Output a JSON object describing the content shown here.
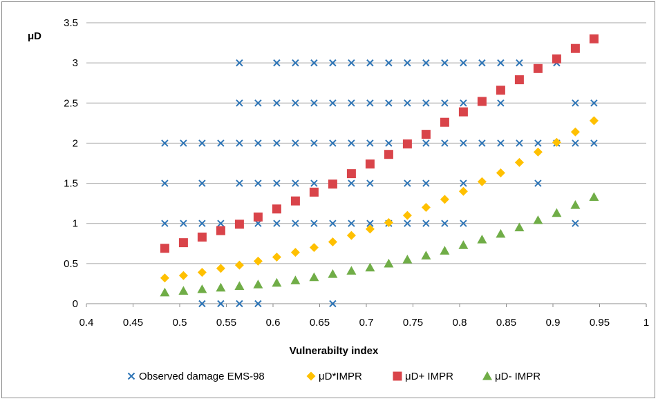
{
  "chart_data": {
    "type": "scatter",
    "xlabel": "Vulnerabilty index",
    "ylabel": "μD",
    "xlim": [
      0.4,
      1
    ],
    "ylim": [
      0,
      3.5
    ],
    "x_ticks": [
      "0.4",
      "0.45",
      "0.5",
      "0.55",
      "0.6",
      "0.65",
      "0.7",
      "0.75",
      "0.8",
      "0.85",
      "0.9",
      "0.95",
      "1"
    ],
    "y_ticks": [
      "0",
      "0.5",
      "1",
      "1.5",
      "2",
      "2.5",
      "3",
      "3.5"
    ],
    "grid": "horizontal",
    "legend_position": "bottom",
    "series": [
      {
        "name": "Observed damage EMS-98",
        "marker": "x",
        "color": "#2e75b6",
        "points": [
          [
            0.484,
            2
          ],
          [
            0.484,
            1.5
          ],
          [
            0.484,
            1
          ],
          [
            0.504,
            2
          ],
          [
            0.504,
            1
          ],
          [
            0.524,
            2
          ],
          [
            0.524,
            1.5
          ],
          [
            0.524,
            1
          ],
          [
            0.524,
            0
          ],
          [
            0.544,
            2
          ],
          [
            0.544,
            1
          ],
          [
            0.544,
            0
          ],
          [
            0.564,
            3
          ],
          [
            0.564,
            2.5
          ],
          [
            0.564,
            2
          ],
          [
            0.564,
            1.5
          ],
          [
            0.564,
            1
          ],
          [
            0.564,
            0
          ],
          [
            0.584,
            2.5
          ],
          [
            0.584,
            2
          ],
          [
            0.584,
            1.5
          ],
          [
            0.584,
            1
          ],
          [
            0.584,
            0
          ],
          [
            0.604,
            3
          ],
          [
            0.604,
            2.5
          ],
          [
            0.604,
            2
          ],
          [
            0.604,
            1.5
          ],
          [
            0.604,
            1
          ],
          [
            0.624,
            3
          ],
          [
            0.624,
            2.5
          ],
          [
            0.624,
            2
          ],
          [
            0.624,
            1.5
          ],
          [
            0.624,
            1
          ],
          [
            0.644,
            3
          ],
          [
            0.644,
            2.5
          ],
          [
            0.644,
            2
          ],
          [
            0.644,
            1.5
          ],
          [
            0.644,
            1
          ],
          [
            0.664,
            3
          ],
          [
            0.664,
            2.5
          ],
          [
            0.664,
            2
          ],
          [
            0.664,
            1.5
          ],
          [
            0.664,
            1
          ],
          [
            0.664,
            0
          ],
          [
            0.684,
            3
          ],
          [
            0.684,
            2.5
          ],
          [
            0.684,
            2
          ],
          [
            0.684,
            1.5
          ],
          [
            0.684,
            1
          ],
          [
            0.704,
            3
          ],
          [
            0.704,
            2.5
          ],
          [
            0.704,
            2
          ],
          [
            0.704,
            1.5
          ],
          [
            0.704,
            1
          ],
          [
            0.724,
            3
          ],
          [
            0.724,
            2.5
          ],
          [
            0.724,
            2
          ],
          [
            0.724,
            1
          ],
          [
            0.744,
            3
          ],
          [
            0.744,
            2.5
          ],
          [
            0.744,
            2
          ],
          [
            0.744,
            1.5
          ],
          [
            0.744,
            1
          ],
          [
            0.764,
            3
          ],
          [
            0.764,
            2.5
          ],
          [
            0.764,
            2
          ],
          [
            0.764,
            1.5
          ],
          [
            0.764,
            1
          ],
          [
            0.784,
            3
          ],
          [
            0.784,
            2.5
          ],
          [
            0.784,
            2
          ],
          [
            0.784,
            1
          ],
          [
            0.804,
            3
          ],
          [
            0.804,
            2.5
          ],
          [
            0.804,
            2
          ],
          [
            0.804,
            1.5
          ],
          [
            0.804,
            1
          ],
          [
            0.824,
            3
          ],
          [
            0.824,
            2
          ],
          [
            0.844,
            3
          ],
          [
            0.844,
            2.5
          ],
          [
            0.844,
            2
          ],
          [
            0.864,
            3
          ],
          [
            0.864,
            2
          ],
          [
            0.884,
            2
          ],
          [
            0.884,
            1.5
          ],
          [
            0.904,
            3
          ],
          [
            0.904,
            2
          ],
          [
            0.924,
            2.5
          ],
          [
            0.924,
            2
          ],
          [
            0.924,
            1
          ],
          [
            0.944,
            2.5
          ],
          [
            0.944,
            2
          ]
        ]
      },
      {
        "name": "μD*IMPR",
        "marker": "diamond",
        "color": "#ffc000",
        "points": [
          [
            0.484,
            0.32
          ],
          [
            0.504,
            0.35
          ],
          [
            0.524,
            0.39
          ],
          [
            0.544,
            0.44
          ],
          [
            0.564,
            0.48
          ],
          [
            0.584,
            0.53
          ],
          [
            0.604,
            0.58
          ],
          [
            0.624,
            0.64
          ],
          [
            0.644,
            0.7
          ],
          [
            0.664,
            0.77
          ],
          [
            0.684,
            0.85
          ],
          [
            0.704,
            0.93
          ],
          [
            0.724,
            1.01
          ],
          [
            0.744,
            1.1
          ],
          [
            0.764,
            1.2
          ],
          [
            0.784,
            1.3
          ],
          [
            0.804,
            1.4
          ],
          [
            0.824,
            1.52
          ],
          [
            0.844,
            1.63
          ],
          [
            0.864,
            1.76
          ],
          [
            0.884,
            1.89
          ],
          [
            0.904,
            2.01
          ],
          [
            0.924,
            2.14
          ],
          [
            0.944,
            2.28
          ]
        ]
      },
      {
        "name": "μD+ IMPR",
        "marker": "square",
        "color": "#d9444a",
        "points": [
          [
            0.484,
            0.69
          ],
          [
            0.504,
            0.76
          ],
          [
            0.524,
            0.83
          ],
          [
            0.544,
            0.91
          ],
          [
            0.564,
            0.99
          ],
          [
            0.584,
            1.08
          ],
          [
            0.604,
            1.18
          ],
          [
            0.624,
            1.28
          ],
          [
            0.644,
            1.39
          ],
          [
            0.664,
            1.49
          ],
          [
            0.684,
            1.62
          ],
          [
            0.704,
            1.74
          ],
          [
            0.724,
            1.86
          ],
          [
            0.744,
            1.99
          ],
          [
            0.764,
            2.11
          ],
          [
            0.784,
            2.26
          ],
          [
            0.804,
            2.39
          ],
          [
            0.824,
            2.52
          ],
          [
            0.844,
            2.66
          ],
          [
            0.864,
            2.79
          ],
          [
            0.884,
            2.93
          ],
          [
            0.904,
            3.05
          ],
          [
            0.924,
            3.18
          ],
          [
            0.944,
            3.3
          ]
        ]
      },
      {
        "name": "μD- IMPR",
        "marker": "triangle",
        "color": "#70ad47",
        "points": [
          [
            0.484,
            0.14
          ],
          [
            0.504,
            0.16
          ],
          [
            0.524,
            0.18
          ],
          [
            0.544,
            0.2
          ],
          [
            0.564,
            0.22
          ],
          [
            0.584,
            0.24
          ],
          [
            0.604,
            0.26
          ],
          [
            0.624,
            0.29
          ],
          [
            0.644,
            0.33
          ],
          [
            0.664,
            0.37
          ],
          [
            0.684,
            0.41
          ],
          [
            0.704,
            0.45
          ],
          [
            0.724,
            0.5
          ],
          [
            0.744,
            0.55
          ],
          [
            0.764,
            0.6
          ],
          [
            0.784,
            0.66
          ],
          [
            0.804,
            0.73
          ],
          [
            0.824,
            0.8
          ],
          [
            0.844,
            0.87
          ],
          [
            0.864,
            0.95
          ],
          [
            0.884,
            1.04
          ],
          [
            0.904,
            1.13
          ],
          [
            0.924,
            1.23
          ],
          [
            0.944,
            1.33
          ]
        ]
      }
    ]
  }
}
